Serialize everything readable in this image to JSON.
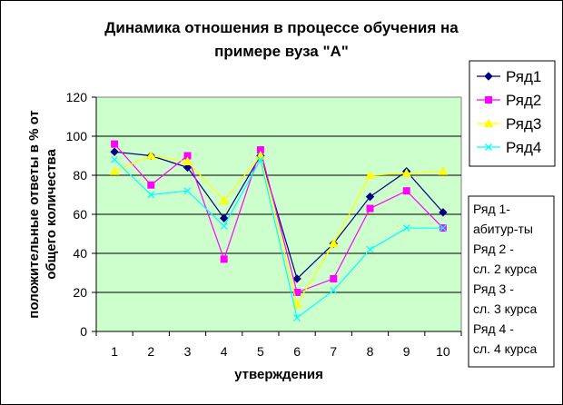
{
  "chart_data": {
    "type": "line",
    "title": [
      "Динамика отношения в процессе обучения на",
      "примере вуза \"А\""
    ],
    "xlabel": "утверждения",
    "ylabel": [
      "положительные ответы в % от",
      "общего количества"
    ],
    "x": [
      1,
      2,
      3,
      4,
      5,
      6,
      7,
      8,
      9,
      10
    ],
    "x_tick_labels": [
      "1",
      "2",
      "3",
      "4",
      "5",
      "6",
      "7",
      "8",
      "9",
      "10"
    ],
    "ylim": [
      0,
      120
    ],
    "y_ticks": [
      0,
      20,
      40,
      60,
      80,
      100,
      120
    ],
    "y_tick_labels": [
      "0",
      "20",
      "40",
      "60",
      "80",
      "100",
      "120"
    ],
    "grid": true,
    "plot_background": "#ccffcc",
    "legend_position": "right",
    "series": [
      {
        "name": "Ряд1",
        "color": "#000080",
        "marker": "diamond",
        "values": [
          92,
          90,
          84,
          58,
          90,
          27,
          45,
          69,
          82,
          61
        ]
      },
      {
        "name": "Ряд2",
        "color": "#ff00ff",
        "marker": "square",
        "values": [
          96,
          75,
          90,
          37,
          93,
          20,
          27,
          63,
          72,
          53
        ]
      },
      {
        "name": "Ряд3",
        "color": "#ffff00",
        "marker": "triangle",
        "values": [
          82,
          90,
          87,
          67,
          90,
          14,
          45,
          80,
          81,
          82
        ]
      },
      {
        "name": "Ряд4",
        "color": "#00ffff",
        "marker": "x",
        "values": [
          88,
          70,
          72,
          54,
          88,
          7,
          21,
          42,
          53,
          53
        ]
      }
    ],
    "annotation": [
      "Ряд 1-",
      "абитур-ты",
      "Ряд 2 -",
      "сл. 2 курса",
      "Ряд 3 -",
      "сл. 3 курса",
      "Ряд 4 -",
      "сл. 4 курса"
    ]
  }
}
